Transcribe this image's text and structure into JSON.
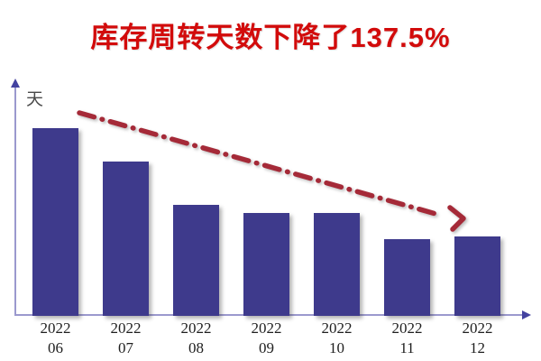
{
  "title": {
    "text": "库存周转天数下降了137.5%"
  },
  "chart_data": {
    "type": "bar",
    "title": "库存周转天数下降了137.5%",
    "xlabel": "",
    "ylabel": "天",
    "categories": [
      {
        "line1": "2022",
        "line2": "06"
      },
      {
        "line1": "2022",
        "line2": "07"
      },
      {
        "line1": "2022",
        "line2": "08"
      },
      {
        "line1": "2022",
        "line2": "09"
      },
      {
        "line1": "2022",
        "line2": "10"
      },
      {
        "line1": "2022",
        "line2": "11"
      },
      {
        "line1": "2022",
        "line2": "12"
      }
    ],
    "values": [
      95,
      78,
      56,
      52,
      52,
      39,
      40
    ],
    "value_note": "values estimated from bar heights; no numeric data labels shown",
    "unit": "天",
    "ylim": [
      0,
      110
    ],
    "grid": false,
    "legend": "none",
    "annotation": {
      "type": "trend-arrow",
      "direction": "down",
      "style": "dash-dot"
    }
  },
  "colors": {
    "title": "#d20b0b",
    "bar": "#3e3a8c",
    "axis_line": "#9b99ce",
    "axis_arrow": "#4342a0",
    "trend_arrow": "#a52a38",
    "tick_label": "#1f1f1f",
    "unit_label": "#4a4a4a"
  }
}
